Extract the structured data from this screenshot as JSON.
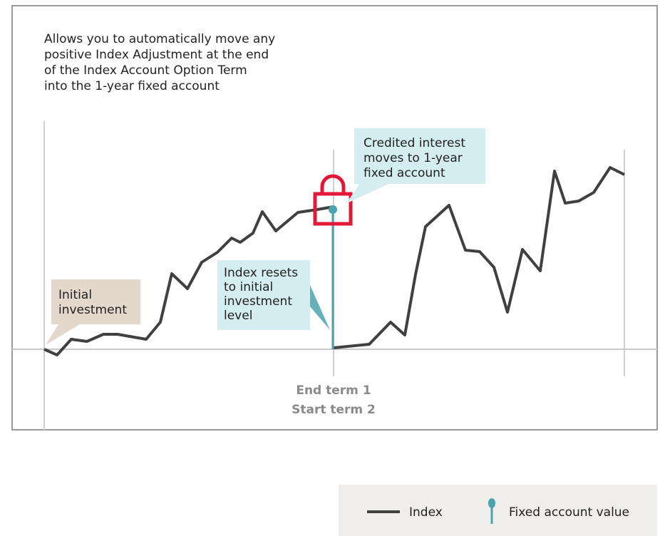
{
  "description": [
    "Allows you to automatically move any",
    "positive Index Adjustment at the end",
    "of the Index Account Option Term",
    "into the 1-year fixed account"
  ],
  "callouts": {
    "initial": [
      "Initial",
      "investment"
    ],
    "credited": [
      "Credited interest",
      "moves to 1-year",
      "fixed account"
    ],
    "reset": [
      "Index resets",
      "to initial",
      "investment",
      "level"
    ]
  },
  "term_label": [
    "End term 1",
    "Start term 2"
  ],
  "legend": {
    "index": "Index",
    "fixed": "Fixed account value"
  }
}
